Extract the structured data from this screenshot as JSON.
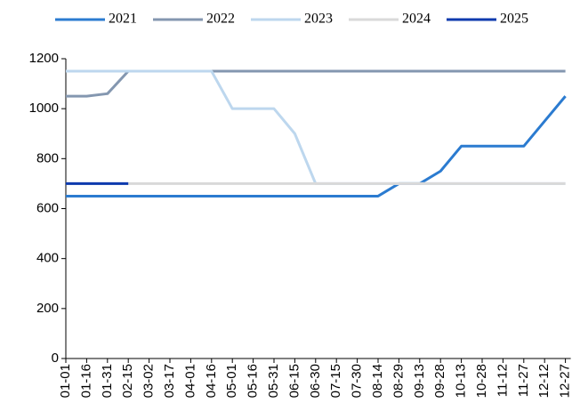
{
  "chart_data": {
    "type": "line",
    "categories": [
      "01-01",
      "01-16",
      "01-31",
      "02-15",
      "03-02",
      "03-17",
      "04-01",
      "04-16",
      "05-01",
      "05-16",
      "05-31",
      "06-15",
      "06-30",
      "07-15",
      "07-30",
      "08-14",
      "08-29",
      "09-13",
      "09-28",
      "10-13",
      "10-28",
      "11-12",
      "11-27",
      "12-12",
      "12-27"
    ],
    "series": [
      {
        "name": "2021",
        "color": "#2b7bd0",
        "values": [
          650,
          650,
          650,
          650,
          650,
          650,
          650,
          650,
          650,
          650,
          650,
          650,
          650,
          650,
          650,
          650,
          700,
          700,
          750,
          850,
          850,
          850,
          850,
          950,
          1050
        ]
      },
      {
        "name": "2022",
        "color": "#8497b0",
        "values": [
          1050,
          1050,
          1060,
          1150,
          1150,
          1150,
          1150,
          1150,
          1150,
          1150,
          1150,
          1150,
          1150,
          1150,
          1150,
          1150,
          1150,
          1150,
          1150,
          1150,
          1150,
          1150,
          1150,
          1150,
          1150
        ]
      },
      {
        "name": "2023",
        "color": "#bdd7ee",
        "values": [
          1150,
          1150,
          1150,
          1150,
          1150,
          1150,
          1150,
          1150,
          1000,
          1000,
          1000,
          900,
          700,
          700,
          700,
          700,
          700,
          700,
          700,
          700,
          700,
          700,
          700,
          700,
          700
        ]
      },
      {
        "name": "2024",
        "color": "#d9d9d9",
        "values": [
          700,
          700,
          700,
          700,
          700,
          700,
          700,
          700,
          700,
          700,
          700,
          700,
          700,
          700,
          700,
          700,
          700,
          700,
          700,
          700,
          700,
          700,
          700,
          700,
          700
        ]
      },
      {
        "name": "2025",
        "color": "#0d3aae",
        "values": [
          700,
          700,
          700,
          700,
          null,
          null,
          null,
          null,
          null,
          null,
          null,
          null,
          null,
          null,
          null,
          null,
          null,
          null,
          null,
          null,
          null,
          null,
          null,
          null,
          null
        ]
      }
    ],
    "ylim": [
      0,
      1200
    ],
    "yticks": [
      0,
      200,
      400,
      600,
      800,
      1000,
      1200
    ],
    "legend": "top"
  }
}
